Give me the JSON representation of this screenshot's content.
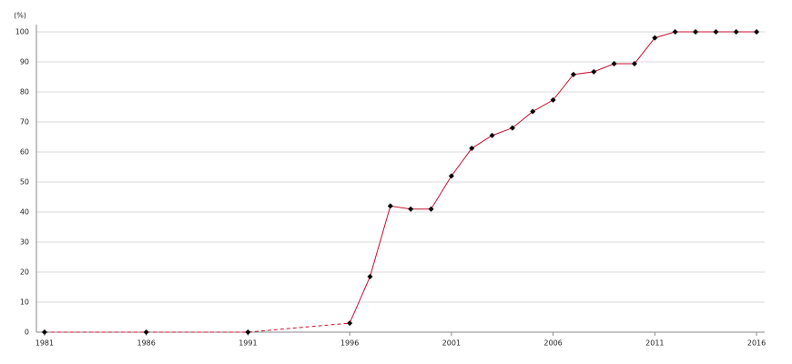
{
  "chart_data": {
    "type": "line",
    "y_label": "(%)",
    "x": [
      1981,
      1986,
      1991,
      1996,
      1997,
      1998,
      1999,
      2000,
      2001,
      2002,
      2003,
      2004,
      2005,
      2006,
      2007,
      2008,
      2009,
      2010,
      2011,
      2012,
      2013,
      2014,
      2015,
      2016
    ],
    "series": [
      {
        "color": "#c8102e",
        "marker_color": "#000000",
        "values": [
          0,
          0,
          0,
          3,
          18.5,
          42,
          41,
          41,
          52,
          61.2,
          65.5,
          68,
          73.5,
          77.3,
          85.8,
          86.7,
          89.4,
          89.4,
          98,
          100,
          100,
          100,
          100,
          100
        ]
      }
    ],
    "xlim": [
      1980.6,
      2016.4
    ],
    "xticks": [
      1981,
      1986,
      1991,
      1996,
      2001,
      2006,
      2011,
      2016
    ],
    "ylim": [
      0,
      100
    ],
    "yticks": [
      0,
      10,
      20,
      30,
      40,
      50,
      60,
      70,
      80,
      90,
      100
    ],
    "grid": true
  }
}
